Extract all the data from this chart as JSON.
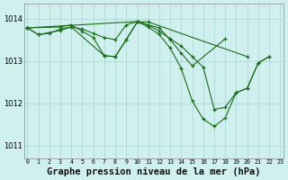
{
  "background_color": "#d0f0f0",
  "grid_color": "#b0d8d8",
  "line_color": "#1a6b1a",
  "marker_size": 3.5,
  "line_width": 0.8,
  "xlabel": "Graphe pression niveau de la mer (hPa)",
  "xlabel_fontsize": 7.5,
  "ylim": [
    1010.7,
    1014.35
  ],
  "xlim": [
    -0.3,
    23.3
  ],
  "yticks": [
    1011,
    1012,
    1013,
    1014
  ],
  "xticks": [
    0,
    1,
    2,
    3,
    4,
    5,
    6,
    7,
    8,
    9,
    10,
    11,
    12,
    13,
    14,
    15,
    16,
    17,
    18,
    19,
    20,
    21,
    22,
    23
  ],
  "series": [
    {
      "x": [
        0,
        1,
        3,
        4,
        7,
        8,
        9,
        10,
        11,
        20
      ],
      "y": [
        1013.78,
        1013.62,
        1013.72,
        1013.8,
        1013.12,
        1013.1,
        1013.5,
        1013.92,
        1013.92,
        1013.1
      ]
    },
    {
      "x": [
        0,
        3,
        4,
        5,
        6,
        7,
        8,
        9,
        10,
        12,
        13,
        14,
        15,
        18
      ],
      "y": [
        1013.78,
        1013.8,
        1013.85,
        1013.7,
        1013.55,
        1013.12,
        1013.1,
        1013.5,
        1013.92,
        1013.78,
        1013.5,
        1013.18,
        1012.88,
        1013.52
      ]
    },
    {
      "x": [
        0,
        1,
        2,
        3,
        4,
        5,
        6,
        7,
        8,
        9,
        10,
        11,
        12,
        13,
        14,
        15,
        16,
        17,
        18,
        19,
        20,
        21,
        22
      ],
      "y": [
        1013.78,
        1013.62,
        1013.65,
        1013.75,
        1013.8,
        1013.75,
        1013.65,
        1013.55,
        1013.5,
        1013.85,
        1013.93,
        1013.85,
        1013.7,
        1013.52,
        1013.35,
        1013.1,
        1012.85,
        1011.85,
        1011.9,
        1012.25,
        1012.35,
        1012.95,
        1013.1
      ]
    },
    {
      "x": [
        0,
        10,
        11,
        12,
        13,
        14,
        15,
        16,
        17,
        18,
        19,
        20,
        21,
        22
      ],
      "y": [
        1013.78,
        1013.93,
        1013.8,
        1013.62,
        1013.3,
        1012.82,
        1012.05,
        1011.62,
        1011.45,
        1011.65,
        1012.25,
        1012.35,
        1012.95,
        1013.1
      ]
    }
  ]
}
